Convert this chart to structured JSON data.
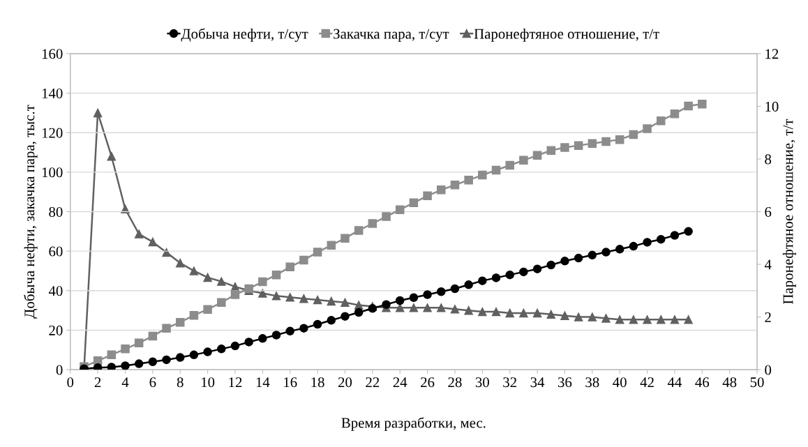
{
  "chart_data": {
    "type": "line",
    "xlabel": "Время разработки, мес.",
    "ylabel": "Добыча нефти, закачка пара, тыс.т",
    "y2label": "Паронефтяное отношение, т/т",
    "xlim": [
      0,
      50
    ],
    "xticks": [
      0,
      2,
      4,
      6,
      8,
      10,
      12,
      14,
      16,
      18,
      20,
      22,
      24,
      26,
      28,
      30,
      32,
      34,
      36,
      38,
      40,
      42,
      44,
      46,
      48,
      50
    ],
    "ylim": [
      0,
      160
    ],
    "yticks": [
      0,
      20,
      40,
      60,
      80,
      100,
      120,
      140,
      160
    ],
    "y2lim": [
      0,
      12
    ],
    "y2ticks": [
      0,
      2,
      4,
      6,
      8,
      10,
      12
    ],
    "grid": "y",
    "legend": "top",
    "series": [
      {
        "name": "Добыча нефти, т/сут",
        "color": "#000000",
        "marker": "circle",
        "x": [
          1,
          2,
          3,
          4,
          5,
          6,
          7,
          8,
          9,
          10,
          11,
          12,
          13,
          14,
          15,
          16,
          17,
          18,
          19,
          20,
          21,
          22,
          23,
          24,
          25,
          26,
          27,
          28,
          29,
          30,
          31,
          32,
          33,
          34,
          35,
          36,
          37,
          38,
          39,
          40,
          41,
          42,
          43,
          44,
          45
        ],
        "values": [
          0.5,
          1,
          1.3,
          2,
          3,
          4,
          5,
          6.2,
          7.5,
          9,
          10.5,
          12,
          14,
          15.8,
          17.5,
          19.5,
          21,
          23,
          25,
          27,
          29,
          31,
          33,
          35,
          36.5,
          38,
          39.5,
          41,
          43,
          45,
          46.5,
          48,
          49.5,
          51,
          53,
          55,
          56.5,
          58,
          59.5,
          61,
          62.5,
          64.5,
          66,
          68,
          70
        ]
      },
      {
        "name": "Закачка пара, т/сут",
        "color": "#8c8c8c",
        "marker": "square",
        "x": [
          1,
          2,
          3,
          4,
          5,
          6,
          7,
          8,
          9,
          10,
          11,
          12,
          13,
          14,
          15,
          16,
          17,
          18,
          19,
          20,
          21,
          22,
          23,
          24,
          25,
          26,
          27,
          28,
          29,
          30,
          31,
          32,
          33,
          34,
          35,
          36,
          37,
          38,
          39,
          40,
          41,
          42,
          43,
          44,
          45,
          46
        ],
        "values": [
          1.5,
          4.5,
          7.5,
          10.5,
          13.5,
          17,
          21,
          24,
          27.5,
          30.5,
          34,
          38,
          41,
          44.5,
          48,
          52,
          55.5,
          59.5,
          63,
          66.5,
          70.5,
          74,
          77.5,
          81,
          84.5,
          88,
          91,
          93.5,
          96,
          98.5,
          101,
          103.5,
          106,
          108.5,
          111,
          112.5,
          113.5,
          114.5,
          115.5,
          116.5,
          119,
          122,
          126,
          129.5,
          133.5,
          134.5
        ]
      },
      {
        "name": "Паронефтяное отношение, т/т",
        "color": "#606060",
        "marker": "triangle",
        "axis": "y2",
        "x": [
          1,
          2,
          3,
          4,
          5,
          6,
          7,
          8,
          9,
          10,
          11,
          12,
          13,
          14,
          15,
          16,
          17,
          18,
          19,
          20,
          21,
          22,
          23,
          24,
          25,
          26,
          27,
          28,
          29,
          30,
          31,
          32,
          33,
          34,
          35,
          36,
          37,
          38,
          39,
          40,
          41,
          42,
          43,
          44,
          45
        ],
        "values": [
          0,
          9.75,
          8.1,
          6.1,
          5.15,
          4.85,
          4.45,
          4.05,
          3.75,
          3.5,
          3.35,
          3.15,
          3.0,
          2.9,
          2.8,
          2.75,
          2.7,
          2.65,
          2.6,
          2.55,
          2.45,
          2.4,
          2.35,
          2.35,
          2.35,
          2.35,
          2.35,
          2.3,
          2.25,
          2.2,
          2.2,
          2.15,
          2.15,
          2.15,
          2.1,
          2.05,
          2.0,
          2.0,
          1.95,
          1.9,
          1.9,
          1.9,
          1.9,
          1.9,
          1.9
        ]
      }
    ]
  }
}
